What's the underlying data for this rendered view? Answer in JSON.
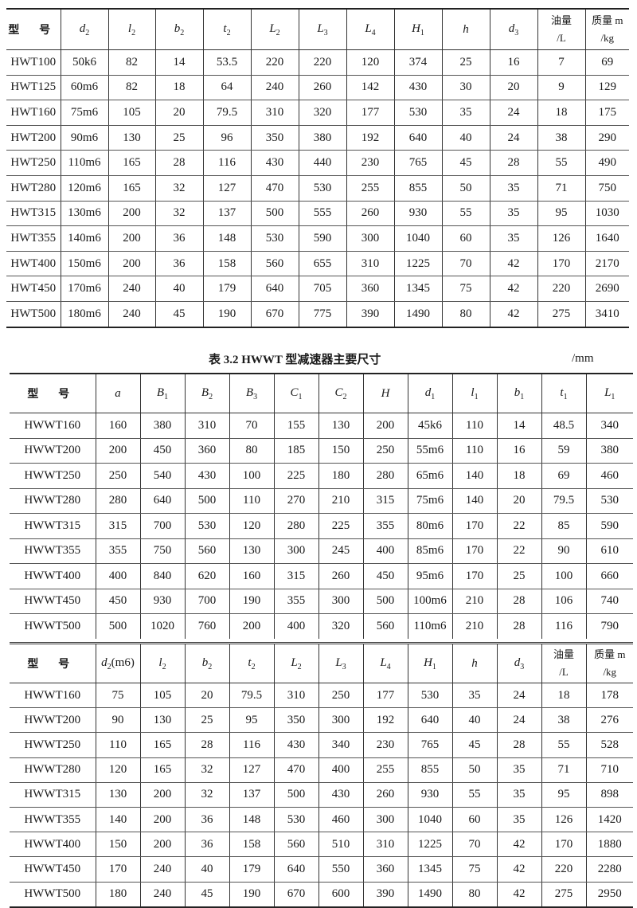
{
  "table1": {
    "headers": [
      {
        "main": "型 号",
        "sub": "",
        "italic": false
      },
      {
        "main": "d",
        "sub": "2",
        "italic": true
      },
      {
        "main": "l",
        "sub": "2",
        "italic": true
      },
      {
        "main": "b",
        "sub": "2",
        "italic": true
      },
      {
        "main": "t",
        "sub": "2",
        "italic": true
      },
      {
        "main": "L",
        "sub": "2",
        "italic": true
      },
      {
        "main": "L",
        "sub": "3",
        "italic": true
      },
      {
        "main": "L",
        "sub": "4",
        "italic": true
      },
      {
        "main": "H",
        "sub": "1",
        "italic": true
      },
      {
        "main": "h",
        "sub": "",
        "italic": true
      },
      {
        "main": "d",
        "sub": "3",
        "italic": true
      },
      {
        "main": "油量",
        "line2": "/L"
      },
      {
        "main": "质量 m",
        "line2": "/kg"
      }
    ],
    "rows": [
      [
        "HWT100",
        "50k6",
        "82",
        "14",
        "53.5",
        "220",
        "220",
        "120",
        "374",
        "25",
        "16",
        "7",
        "69"
      ],
      [
        "HWT125",
        "60m6",
        "82",
        "18",
        "64",
        "240",
        "260",
        "142",
        "430",
        "30",
        "20",
        "9",
        "129"
      ],
      [
        "HWT160",
        "75m6",
        "105",
        "20",
        "79.5",
        "310",
        "320",
        "177",
        "530",
        "35",
        "24",
        "18",
        "175"
      ],
      [
        "HWT200",
        "90m6",
        "130",
        "25",
        "96",
        "350",
        "380",
        "192",
        "640",
        "40",
        "24",
        "38",
        "290"
      ],
      [
        "HWT250",
        "110m6",
        "165",
        "28",
        "116",
        "430",
        "440",
        "230",
        "765",
        "45",
        "28",
        "55",
        "490"
      ],
      [
        "HWT280",
        "120m6",
        "165",
        "32",
        "127",
        "470",
        "530",
        "255",
        "855",
        "50",
        "35",
        "71",
        "750"
      ],
      [
        "HWT315",
        "130m6",
        "200",
        "32",
        "137",
        "500",
        "555",
        "260",
        "930",
        "55",
        "35",
        "95",
        "1030"
      ],
      [
        "HWT355",
        "140m6",
        "200",
        "36",
        "148",
        "530",
        "590",
        "300",
        "1040",
        "60",
        "35",
        "126",
        "1640"
      ],
      [
        "HWT400",
        "150m6",
        "200",
        "36",
        "158",
        "560",
        "655",
        "310",
        "1225",
        "70",
        "42",
        "170",
        "2170"
      ],
      [
        "HWT450",
        "170m6",
        "240",
        "40",
        "179",
        "640",
        "705",
        "360",
        "1345",
        "75",
        "42",
        "220",
        "2690"
      ],
      [
        "HWT500",
        "180m6",
        "240",
        "45",
        "190",
        "670",
        "775",
        "390",
        "1490",
        "80",
        "42",
        "275",
        "3410"
      ]
    ]
  },
  "caption": {
    "title": "表 3.2    HWWT 型减速器主要尺寸",
    "unit": "/mm"
  },
  "table2": {
    "headers": [
      {
        "main": "型 号",
        "sub": "",
        "italic": false
      },
      {
        "main": "a",
        "sub": "",
        "italic": true
      },
      {
        "main": "B",
        "sub": "1",
        "italic": true
      },
      {
        "main": "B",
        "sub": "2",
        "italic": true
      },
      {
        "main": "B",
        "sub": "3",
        "italic": true
      },
      {
        "main": "C",
        "sub": "1",
        "italic": true
      },
      {
        "main": "C",
        "sub": "2",
        "italic": true
      },
      {
        "main": "H",
        "sub": "",
        "italic": true
      },
      {
        "main": "d",
        "sub": "1",
        "italic": true
      },
      {
        "main": "l",
        "sub": "1",
        "italic": true
      },
      {
        "main": "b",
        "sub": "1",
        "italic": true
      },
      {
        "main": "t",
        "sub": "1",
        "italic": true
      },
      {
        "main": "L",
        "sub": "1",
        "italic": true
      }
    ],
    "rows": [
      [
        "HWWT160",
        "160",
        "380",
        "310",
        "70",
        "155",
        "130",
        "200",
        "45k6",
        "110",
        "14",
        "48.5",
        "340"
      ],
      [
        "HWWT200",
        "200",
        "450",
        "360",
        "80",
        "185",
        "150",
        "250",
        "55m6",
        "110",
        "16",
        "59",
        "380"
      ],
      [
        "HWWT250",
        "250",
        "540",
        "430",
        "100",
        "225",
        "180",
        "280",
        "65m6",
        "140",
        "18",
        "69",
        "460"
      ],
      [
        "HWWT280",
        "280",
        "640",
        "500",
        "110",
        "270",
        "210",
        "315",
        "75m6",
        "140",
        "20",
        "79.5",
        "530"
      ],
      [
        "HWWT315",
        "315",
        "700",
        "530",
        "120",
        "280",
        "225",
        "355",
        "80m6",
        "170",
        "22",
        "85",
        "590"
      ],
      [
        "HWWT355",
        "355",
        "750",
        "560",
        "130",
        "300",
        "245",
        "400",
        "85m6",
        "170",
        "22",
        "90",
        "610"
      ],
      [
        "HWWT400",
        "400",
        "840",
        "620",
        "160",
        "315",
        "260",
        "450",
        "95m6",
        "170",
        "25",
        "100",
        "660"
      ],
      [
        "HWWT450",
        "450",
        "930",
        "700",
        "190",
        "355",
        "300",
        "500",
        "100m6",
        "210",
        "28",
        "106",
        "740"
      ],
      [
        "HWWT500",
        "500",
        "1020",
        "760",
        "200",
        "400",
        "320",
        "560",
        "110m6",
        "210",
        "28",
        "116",
        "790"
      ]
    ]
  },
  "table3": {
    "headers": [
      {
        "main": "型 号",
        "sub": "",
        "italic": false
      },
      {
        "main": "d",
        "sub": "2",
        "italic": true,
        "suffix": "(m6)"
      },
      {
        "main": "l",
        "sub": "2",
        "italic": true
      },
      {
        "main": "b",
        "sub": "2",
        "italic": true
      },
      {
        "main": "t",
        "sub": "2",
        "italic": true
      },
      {
        "main": "L",
        "sub": "2",
        "italic": true
      },
      {
        "main": "L",
        "sub": "3",
        "italic": true
      },
      {
        "main": "L",
        "sub": "4",
        "italic": true
      },
      {
        "main": "H",
        "sub": "1",
        "italic": true
      },
      {
        "main": "h",
        "sub": "",
        "italic": true
      },
      {
        "main": "d",
        "sub": "3",
        "italic": true
      },
      {
        "main": "油量",
        "line2": "/L"
      },
      {
        "main": "质量 m",
        "line2": "/kg"
      }
    ],
    "rows": [
      [
        "HWWT160",
        "75",
        "105",
        "20",
        "79.5",
        "310",
        "250",
        "177",
        "530",
        "35",
        "24",
        "18",
        "178"
      ],
      [
        "HWWT200",
        "90",
        "130",
        "25",
        "95",
        "350",
        "300",
        "192",
        "640",
        "40",
        "24",
        "38",
        "276"
      ],
      [
        "HWWT250",
        "110",
        "165",
        "28",
        "116",
        "430",
        "340",
        "230",
        "765",
        "45",
        "28",
        "55",
        "528"
      ],
      [
        "HWWT280",
        "120",
        "165",
        "32",
        "127",
        "470",
        "400",
        "255",
        "855",
        "50",
        "35",
        "71",
        "710"
      ],
      [
        "HWWT315",
        "130",
        "200",
        "32",
        "137",
        "500",
        "430",
        "260",
        "930",
        "55",
        "35",
        "95",
        "898"
      ],
      [
        "HWWT355",
        "140",
        "200",
        "36",
        "148",
        "530",
        "460",
        "300",
        "1040",
        "60",
        "35",
        "126",
        "1420"
      ],
      [
        "HWWT400",
        "150",
        "200",
        "36",
        "158",
        "560",
        "510",
        "310",
        "1225",
        "70",
        "42",
        "170",
        "1880"
      ],
      [
        "HWWT450",
        "170",
        "240",
        "40",
        "179",
        "640",
        "550",
        "360",
        "1345",
        "75",
        "42",
        "220",
        "2280"
      ],
      [
        "HWWT500",
        "180",
        "240",
        "45",
        "190",
        "670",
        "600",
        "390",
        "1490",
        "80",
        "42",
        "275",
        "2950"
      ]
    ]
  }
}
